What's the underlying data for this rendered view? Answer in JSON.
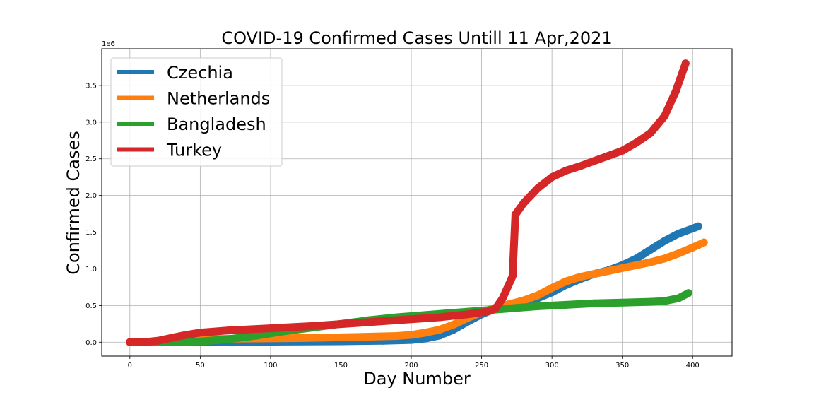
{
  "chart_data": {
    "type": "line",
    "title": "COVID-19 Confirmed Cases Untill 11 Apr,2021",
    "xlabel": "Day Number",
    "ylabel": "Confirmed Cases",
    "y_multiplier": "1e6",
    "xlim": [
      -20,
      428
    ],
    "ylim": [
      -0.19,
      4.0
    ],
    "xticks": [
      0,
      50,
      100,
      150,
      200,
      250,
      300,
      350,
      400
    ],
    "yticks": [
      0.0,
      0.5,
      1.0,
      1.5,
      2.0,
      2.5,
      3.0,
      3.5
    ],
    "ytick_labels": [
      "0.0",
      "0.5",
      "1.0",
      "1.5",
      "2.0",
      "2.5",
      "3.0",
      "3.5"
    ],
    "grid": true,
    "legend_placement": "upper-left",
    "series": [
      {
        "name": "Czechia",
        "color": "#1f77b4",
        "points": [
          [
            0,
            0
          ],
          [
            20,
            0.001
          ],
          [
            50,
            0.005
          ],
          [
            100,
            0.008
          ],
          [
            150,
            0.012
          ],
          [
            180,
            0.02
          ],
          [
            200,
            0.03
          ],
          [
            210,
            0.05
          ],
          [
            220,
            0.09
          ],
          [
            230,
            0.17
          ],
          [
            240,
            0.28
          ],
          [
            250,
            0.38
          ],
          [
            260,
            0.46
          ],
          [
            270,
            0.52
          ],
          [
            280,
            0.56
          ],
          [
            290,
            0.6
          ],
          [
            300,
            0.68
          ],
          [
            310,
            0.78
          ],
          [
            320,
            0.86
          ],
          [
            330,
            0.93
          ],
          [
            340,
            0.98
          ],
          [
            350,
            1.05
          ],
          [
            360,
            1.14
          ],
          [
            370,
            1.26
          ],
          [
            380,
            1.38
          ],
          [
            390,
            1.48
          ],
          [
            400,
            1.55
          ],
          [
            404,
            1.58
          ]
        ]
      },
      {
        "name": "Netherlands",
        "color": "#ff7f0e",
        "points": [
          [
            0,
            0
          ],
          [
            20,
            0.005
          ],
          [
            30,
            0.02
          ],
          [
            50,
            0.04
          ],
          [
            80,
            0.05
          ],
          [
            120,
            0.055
          ],
          [
            160,
            0.07
          ],
          [
            190,
            0.085
          ],
          [
            200,
            0.1
          ],
          [
            210,
            0.13
          ],
          [
            220,
            0.17
          ],
          [
            230,
            0.24
          ],
          [
            240,
            0.33
          ],
          [
            250,
            0.41
          ],
          [
            260,
            0.47
          ],
          [
            270,
            0.52
          ],
          [
            280,
            0.57
          ],
          [
            290,
            0.64
          ],
          [
            300,
            0.74
          ],
          [
            310,
            0.83
          ],
          [
            320,
            0.89
          ],
          [
            330,
            0.93
          ],
          [
            340,
            0.97
          ],
          [
            350,
            1.01
          ],
          [
            360,
            1.05
          ],
          [
            370,
            1.09
          ],
          [
            380,
            1.14
          ],
          [
            390,
            1.21
          ],
          [
            400,
            1.29
          ],
          [
            408,
            1.36
          ]
        ]
      },
      {
        "name": "Bangladesh",
        "color": "#2ca02c",
        "points": [
          [
            0,
            0
          ],
          [
            30,
            0.001
          ],
          [
            50,
            0.01
          ],
          [
            70,
            0.04
          ],
          [
            90,
            0.09
          ],
          [
            110,
            0.15
          ],
          [
            130,
            0.2
          ],
          [
            150,
            0.25
          ],
          [
            170,
            0.3
          ],
          [
            190,
            0.34
          ],
          [
            210,
            0.37
          ],
          [
            230,
            0.4
          ],
          [
            250,
            0.43
          ],
          [
            270,
            0.46
          ],
          [
            290,
            0.49
          ],
          [
            310,
            0.51
          ],
          [
            330,
            0.53
          ],
          [
            350,
            0.54
          ],
          [
            370,
            0.55
          ],
          [
            380,
            0.56
          ],
          [
            390,
            0.6
          ],
          [
            397,
            0.67
          ]
        ]
      },
      {
        "name": "Turkey",
        "color": "#d62728",
        "points": [
          [
            0,
            0
          ],
          [
            10,
            0.001
          ],
          [
            20,
            0.02
          ],
          [
            30,
            0.06
          ],
          [
            40,
            0.1
          ],
          [
            50,
            0.13
          ],
          [
            70,
            0.16
          ],
          [
            100,
            0.19
          ],
          [
            130,
            0.22
          ],
          [
            160,
            0.26
          ],
          [
            190,
            0.3
          ],
          [
            220,
            0.34
          ],
          [
            240,
            0.38
          ],
          [
            255,
            0.42
          ],
          [
            260,
            0.46
          ],
          [
            265,
            0.6
          ],
          [
            272,
            0.9
          ],
          [
            274,
            1.74
          ],
          [
            280,
            1.9
          ],
          [
            290,
            2.1
          ],
          [
            300,
            2.25
          ],
          [
            310,
            2.34
          ],
          [
            320,
            2.4
          ],
          [
            330,
            2.47
          ],
          [
            340,
            2.54
          ],
          [
            350,
            2.61
          ],
          [
            360,
            2.72
          ],
          [
            370,
            2.85
          ],
          [
            380,
            3.08
          ],
          [
            388,
            3.42
          ],
          [
            395,
            3.8
          ]
        ]
      }
    ]
  }
}
